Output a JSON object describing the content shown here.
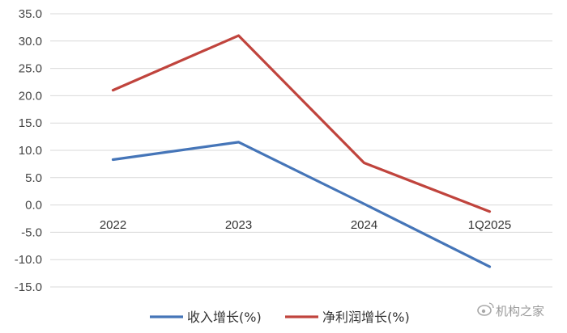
{
  "chart_data": {
    "type": "line",
    "categories": [
      "2022",
      "2023",
      "2024",
      "1Q2025"
    ],
    "ylim": [
      -15.0,
      35.0
    ],
    "ytick_step": 5,
    "ytick_labels": [
      "35.0",
      "30.0",
      "25.0",
      "20.0",
      "15.0",
      "10.0",
      "5.0",
      "0.0",
      "-5.0",
      "-10.0",
      "-15.0"
    ],
    "grid": true,
    "legend_position": "bottom",
    "series": [
      {
        "name": "收入增长(%)",
        "color": "#4575b8",
        "values": [
          8.3,
          11.5,
          0.2,
          -11.3
        ]
      },
      {
        "name": "净利润增长(%)",
        "color": "#c0443d",
        "values": [
          21.0,
          31.0,
          7.7,
          -1.2
        ]
      }
    ]
  },
  "watermark": {
    "text": "机构之家",
    "icon": "weibo-icon"
  }
}
